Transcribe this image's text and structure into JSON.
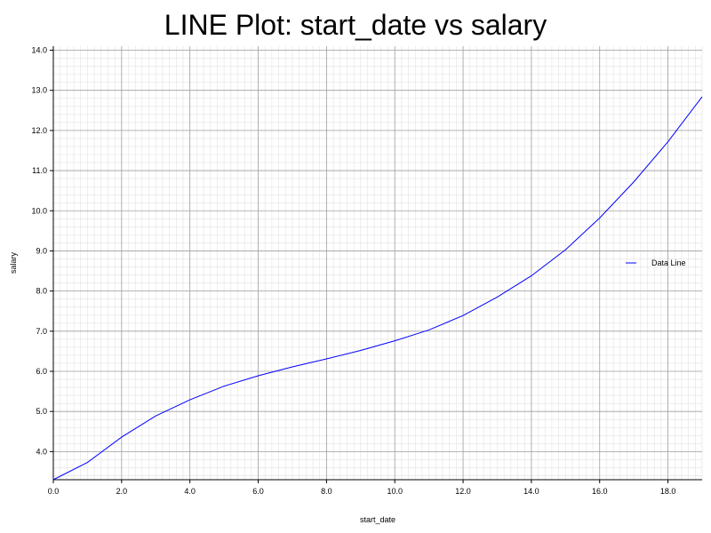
{
  "chart_data": {
    "type": "line",
    "title": "LINE Plot: start_date vs salary",
    "xlabel": "start_date",
    "ylabel": "salary",
    "xlim": [
      0,
      19
    ],
    "ylim": [
      3.3,
      14.1
    ],
    "xticks": [
      0,
      2,
      4,
      6,
      8,
      10,
      12,
      14,
      16,
      18
    ],
    "yticks": [
      4,
      5,
      6,
      7,
      8,
      9,
      10,
      11,
      12,
      13,
      14
    ],
    "grid": true,
    "legend_position": "right",
    "series": [
      {
        "name": "Data Line",
        "color": "#0000ff",
        "x": [
          0,
          1,
          2,
          3,
          4,
          5,
          6,
          7,
          8,
          9,
          10,
          11,
          12,
          13,
          14,
          15,
          16,
          17,
          18,
          19
        ],
        "y": [
          3.3,
          3.73,
          4.36,
          4.89,
          5.29,
          5.63,
          5.89,
          6.11,
          6.31,
          6.52,
          6.76,
          7.03,
          7.39,
          7.85,
          8.38,
          9.03,
          9.82,
          10.72,
          11.72,
          12.84
        ]
      }
    ]
  }
}
